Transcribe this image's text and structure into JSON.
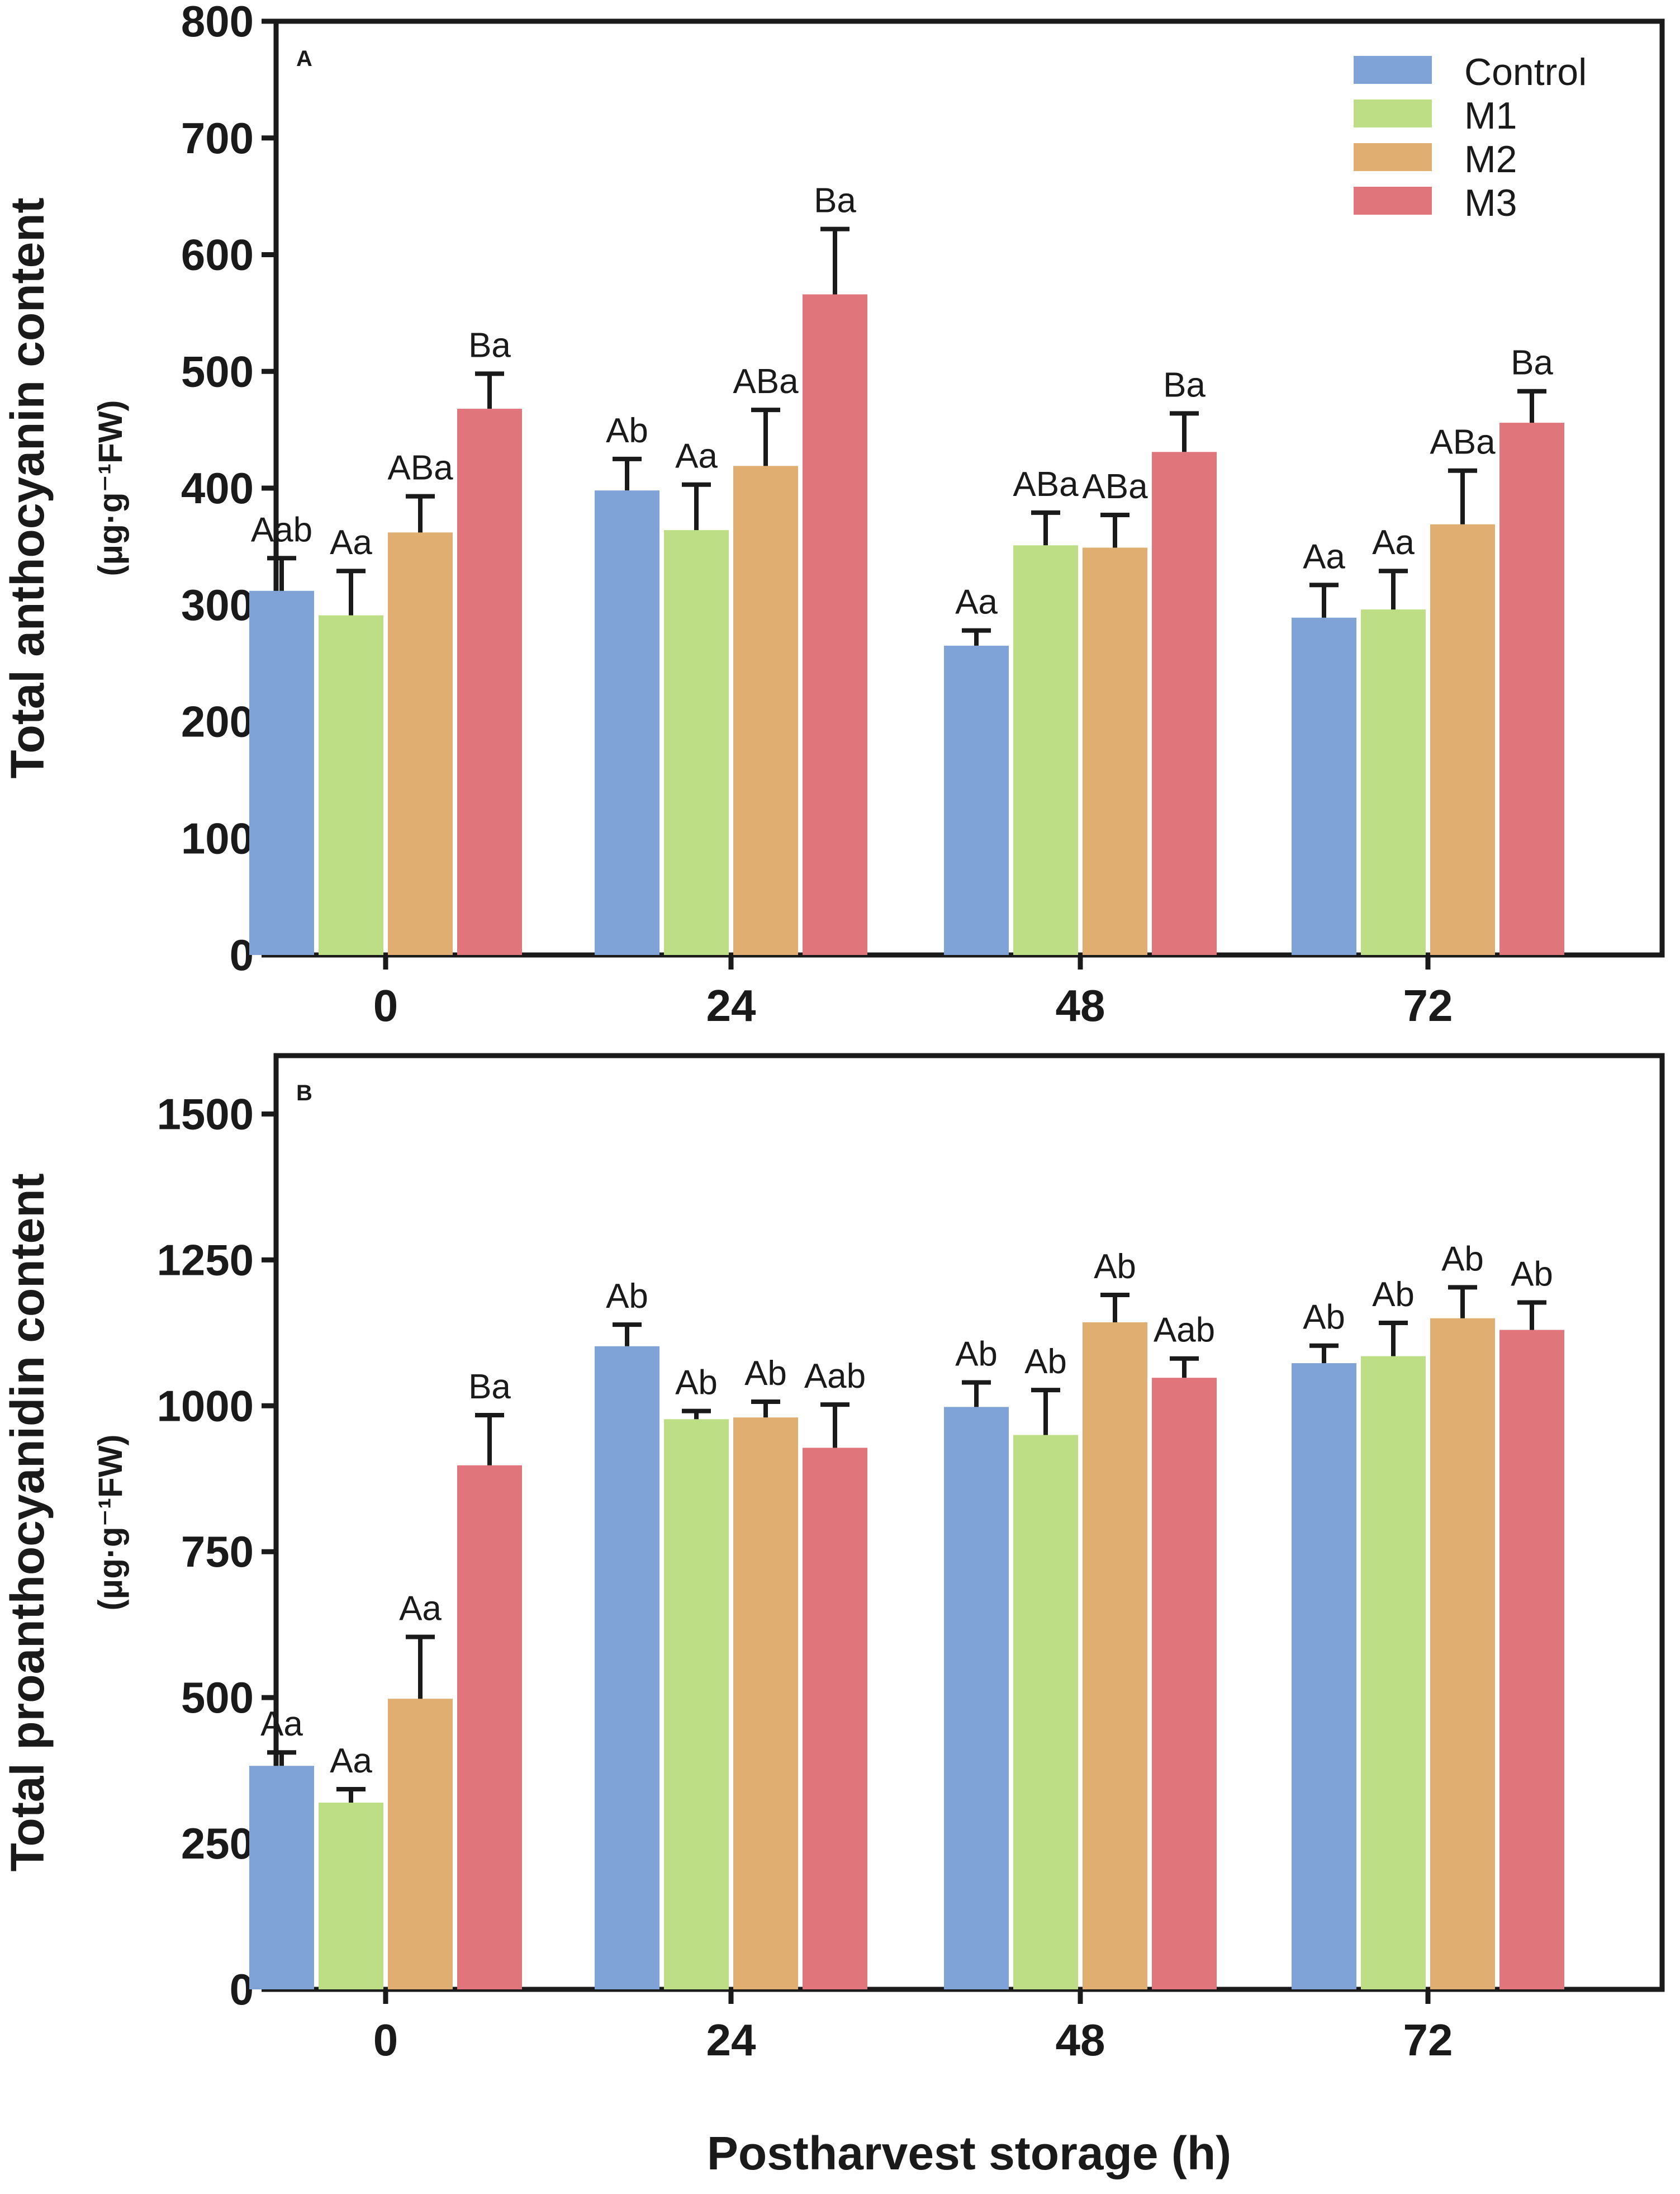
{
  "figure": {
    "xlabel": "Postharvest storage (h)",
    "colors": {
      "Control": "#7fa3d6",
      "M1": "#bede85",
      "M2": "#dfae70",
      "M3": "#e0767c"
    },
    "legend": {
      "position": "top-right",
      "entries": [
        "Control",
        "M1",
        "M2",
        "M3"
      ]
    }
  },
  "chart_data": [
    {
      "type": "bar",
      "panel": "A",
      "title": "",
      "ylabel": "Total anthocyanin content",
      "yunit": "(μg·g⁻¹FW)",
      "ylim": [
        0,
        800
      ],
      "yticks": [
        0,
        100,
        200,
        300,
        400,
        500,
        600,
        700,
        800
      ],
      "categories": [
        "0",
        "24",
        "48",
        "72"
      ],
      "series": [
        {
          "name": "Control",
          "values": [
            312,
            398,
            265,
            289
          ],
          "errors": [
            28,
            27,
            13,
            28
          ],
          "labels": [
            "Aab",
            "Ab",
            "Aa",
            "Aa"
          ]
        },
        {
          "name": "M1",
          "values": [
            291,
            364,
            351,
            296
          ],
          "errors": [
            38,
            39,
            28,
            33
          ],
          "labels": [
            "Aa",
            "Aa",
            "ABa",
            "Aa"
          ]
        },
        {
          "name": "M2",
          "values": [
            362,
            419,
            349,
            369
          ],
          "errors": [
            31,
            48,
            28,
            46
          ],
          "labels": [
            "ABa",
            "ABa",
            "ABa",
            "ABa"
          ]
        },
        {
          "name": "M3",
          "values": [
            468,
            566,
            431,
            456
          ],
          "errors": [
            30,
            56,
            33,
            27
          ],
          "labels": [
            "Ba",
            "Ba",
            "Ba",
            "Ba"
          ]
        }
      ]
    },
    {
      "type": "bar",
      "panel": "B",
      "title": "",
      "ylabel": "Total proanthocyanidin content",
      "yunit": "(μg·g⁻¹FW)",
      "ylim": [
        0,
        1600
      ],
      "yticks": [
        0,
        250,
        500,
        750,
        1000,
        1250,
        1500
      ],
      "categories": [
        "0",
        "24",
        "48",
        "72"
      ],
      "series": [
        {
          "name": "Control",
          "values": [
            383,
            1102,
            998,
            1073
          ],
          "errors": [
            23,
            37,
            42,
            30
          ],
          "labels": [
            "Aa",
            "Ab",
            "Ab",
            "Ab"
          ]
        },
        {
          "name": "M1",
          "values": [
            320,
            977,
            950,
            1085
          ],
          "errors": [
            23,
            14,
            77,
            57
          ],
          "labels": [
            "Aa",
            "Ab",
            "Ab",
            "Ab"
          ]
        },
        {
          "name": "M2",
          "values": [
            498,
            980,
            1143,
            1150
          ],
          "errors": [
            106,
            27,
            47,
            53
          ],
          "labels": [
            "Aa",
            "Ab",
            "Ab",
            "Ab"
          ]
        },
        {
          "name": "M3",
          "values": [
            898,
            928,
            1048,
            1130
          ],
          "errors": [
            86,
            74,
            33,
            47
          ],
          "labels": [
            "Ba",
            "Aab",
            "Aab",
            "Ab"
          ]
        }
      ]
    }
  ]
}
